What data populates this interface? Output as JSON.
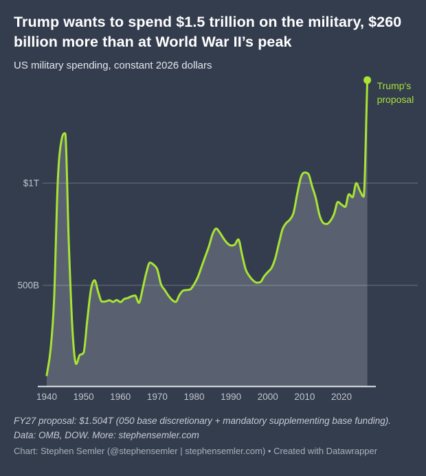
{
  "header": {
    "title": "Trump wants to spend $1.5 trillion on the military, $260 billion more than at World War II’s peak",
    "subtitle": "US military spending, constant 2026 dollars"
  },
  "footer": {
    "note": "FY27 proposal: $1.504T (050 base discretionary + mandatory supplementing base funding). Data: OMB, DOW. More: stephensemler.com",
    "byline": "Chart: Stephen Semler (@stephensemler | stephensemler.com) • Created with Datawrapper"
  },
  "chart_data": {
    "type": "area",
    "title": "US military spending, constant 2026 dollars",
    "unit": "billions of constant 2026 US dollars",
    "x": [
      1940,
      1941,
      1942,
      1943,
      1944,
      1945,
      1946,
      1947,
      1948,
      1949,
      1950,
      1951,
      1952,
      1953,
      1954,
      1955,
      1956,
      1957,
      1958,
      1959,
      1960,
      1961,
      1962,
      1963,
      1964,
      1965,
      1966,
      1967,
      1968,
      1969,
      1970,
      1971,
      1972,
      1973,
      1974,
      1975,
      1976,
      1977,
      1978,
      1979,
      1980,
      1981,
      1982,
      1983,
      1984,
      1985,
      1986,
      1987,
      1988,
      1989,
      1990,
      1991,
      1992,
      1993,
      1994,
      1995,
      1996,
      1997,
      1998,
      1999,
      2000,
      2001,
      2002,
      2003,
      2004,
      2005,
      2006,
      2007,
      2008,
      2009,
      2010,
      2011,
      2012,
      2013,
      2014,
      2015,
      2016,
      2017,
      2018,
      2019,
      2020,
      2021,
      2022,
      2023,
      2024,
      2025,
      2026,
      2027
    ],
    "values": [
      60,
      180,
      430,
      1010,
      1210,
      1244,
      700,
      280,
      115,
      160,
      170,
      330,
      480,
      525,
      465,
      420,
      421,
      427,
      419,
      428,
      418,
      433,
      438,
      446,
      450,
      414,
      480,
      560,
      611,
      601,
      578,
      505,
      478,
      450,
      429,
      419,
      452,
      474,
      477,
      481,
      505,
      540,
      590,
      640,
      690,
      750,
      778,
      757,
      729,
      706,
      695,
      699,
      725,
      650,
      578,
      545,
      524,
      513,
      516,
      544,
      565,
      585,
      631,
      705,
      775,
      805,
      822,
      856,
      950,
      1030,
      1052,
      1045,
      985,
      928,
      845,
      806,
      800,
      816,
      850,
      908,
      895,
      884,
      946,
      931,
      1000,
      962,
      934,
      1504
    ],
    "xlabel": "",
    "ylabel": "",
    "ylim": [
      0,
      1560
    ],
    "xlim": [
      1940,
      2027
    ],
    "grid": true,
    "yticks": [
      {
        "value": 1000,
        "label": "$1T"
      },
      {
        "value": 500,
        "label": "500B"
      }
    ],
    "xticks": [
      1940,
      1950,
      1960,
      1970,
      1980,
      1990,
      2000,
      2010,
      2020
    ],
    "annotation": {
      "label": "Trump's proposal",
      "year": 2027,
      "value_billions": 1504
    },
    "colors": {
      "background": "#343d4e",
      "line": "#a9e434",
      "area": "#596170",
      "grid": "rgba(255,255,255,0.28)",
      "axis_line": "#e7eaee",
      "tick_text": "#bfc6ce",
      "annotation_text": "#a9e434"
    }
  }
}
